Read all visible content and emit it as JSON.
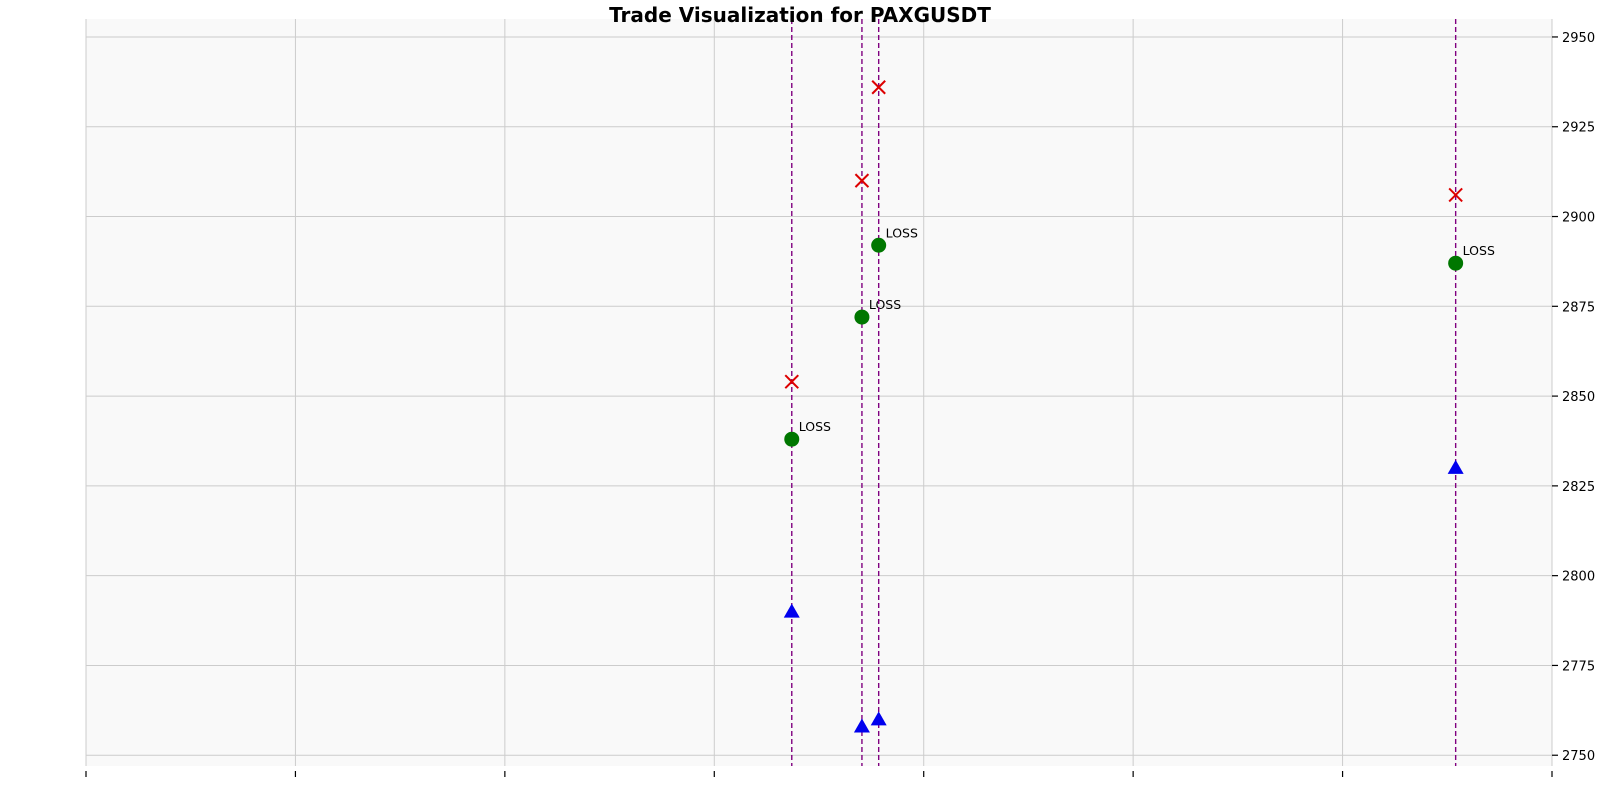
{
  "chart_data": {
    "type": "scatter",
    "title": "Trade Visualization for PAXGUSDT",
    "xlabel": "",
    "ylabel": "",
    "ylim": [
      2747,
      2955
    ],
    "yticks": [
      2750,
      2775,
      2800,
      2825,
      2850,
      2875,
      2900,
      2925,
      2950
    ],
    "xlim": [
      0,
      7
    ],
    "xticks": [
      0,
      1,
      2,
      3,
      4,
      5,
      6,
      7
    ],
    "grid": true,
    "background": "#f9f9f9",
    "colors": {
      "entry": "#0000ee",
      "stop": "#dd0000",
      "target": "#007700",
      "trade_line": "#800080",
      "grid": "#cccccc"
    },
    "trades": [
      {
        "x": 3.37,
        "entry": 2790,
        "target": 2838,
        "stop": 2854,
        "result": "LOSS"
      },
      {
        "x": 3.705,
        "entry": 2758,
        "target": 2872,
        "stop": 2910,
        "result": "LOSS"
      },
      {
        "x": 3.785,
        "entry": 2760,
        "target": 2892,
        "stop": 2936,
        "result": "LOSS"
      },
      {
        "x": 6.54,
        "entry": 2830,
        "target": 2887,
        "stop": 2906,
        "result": "LOSS"
      }
    ]
  }
}
